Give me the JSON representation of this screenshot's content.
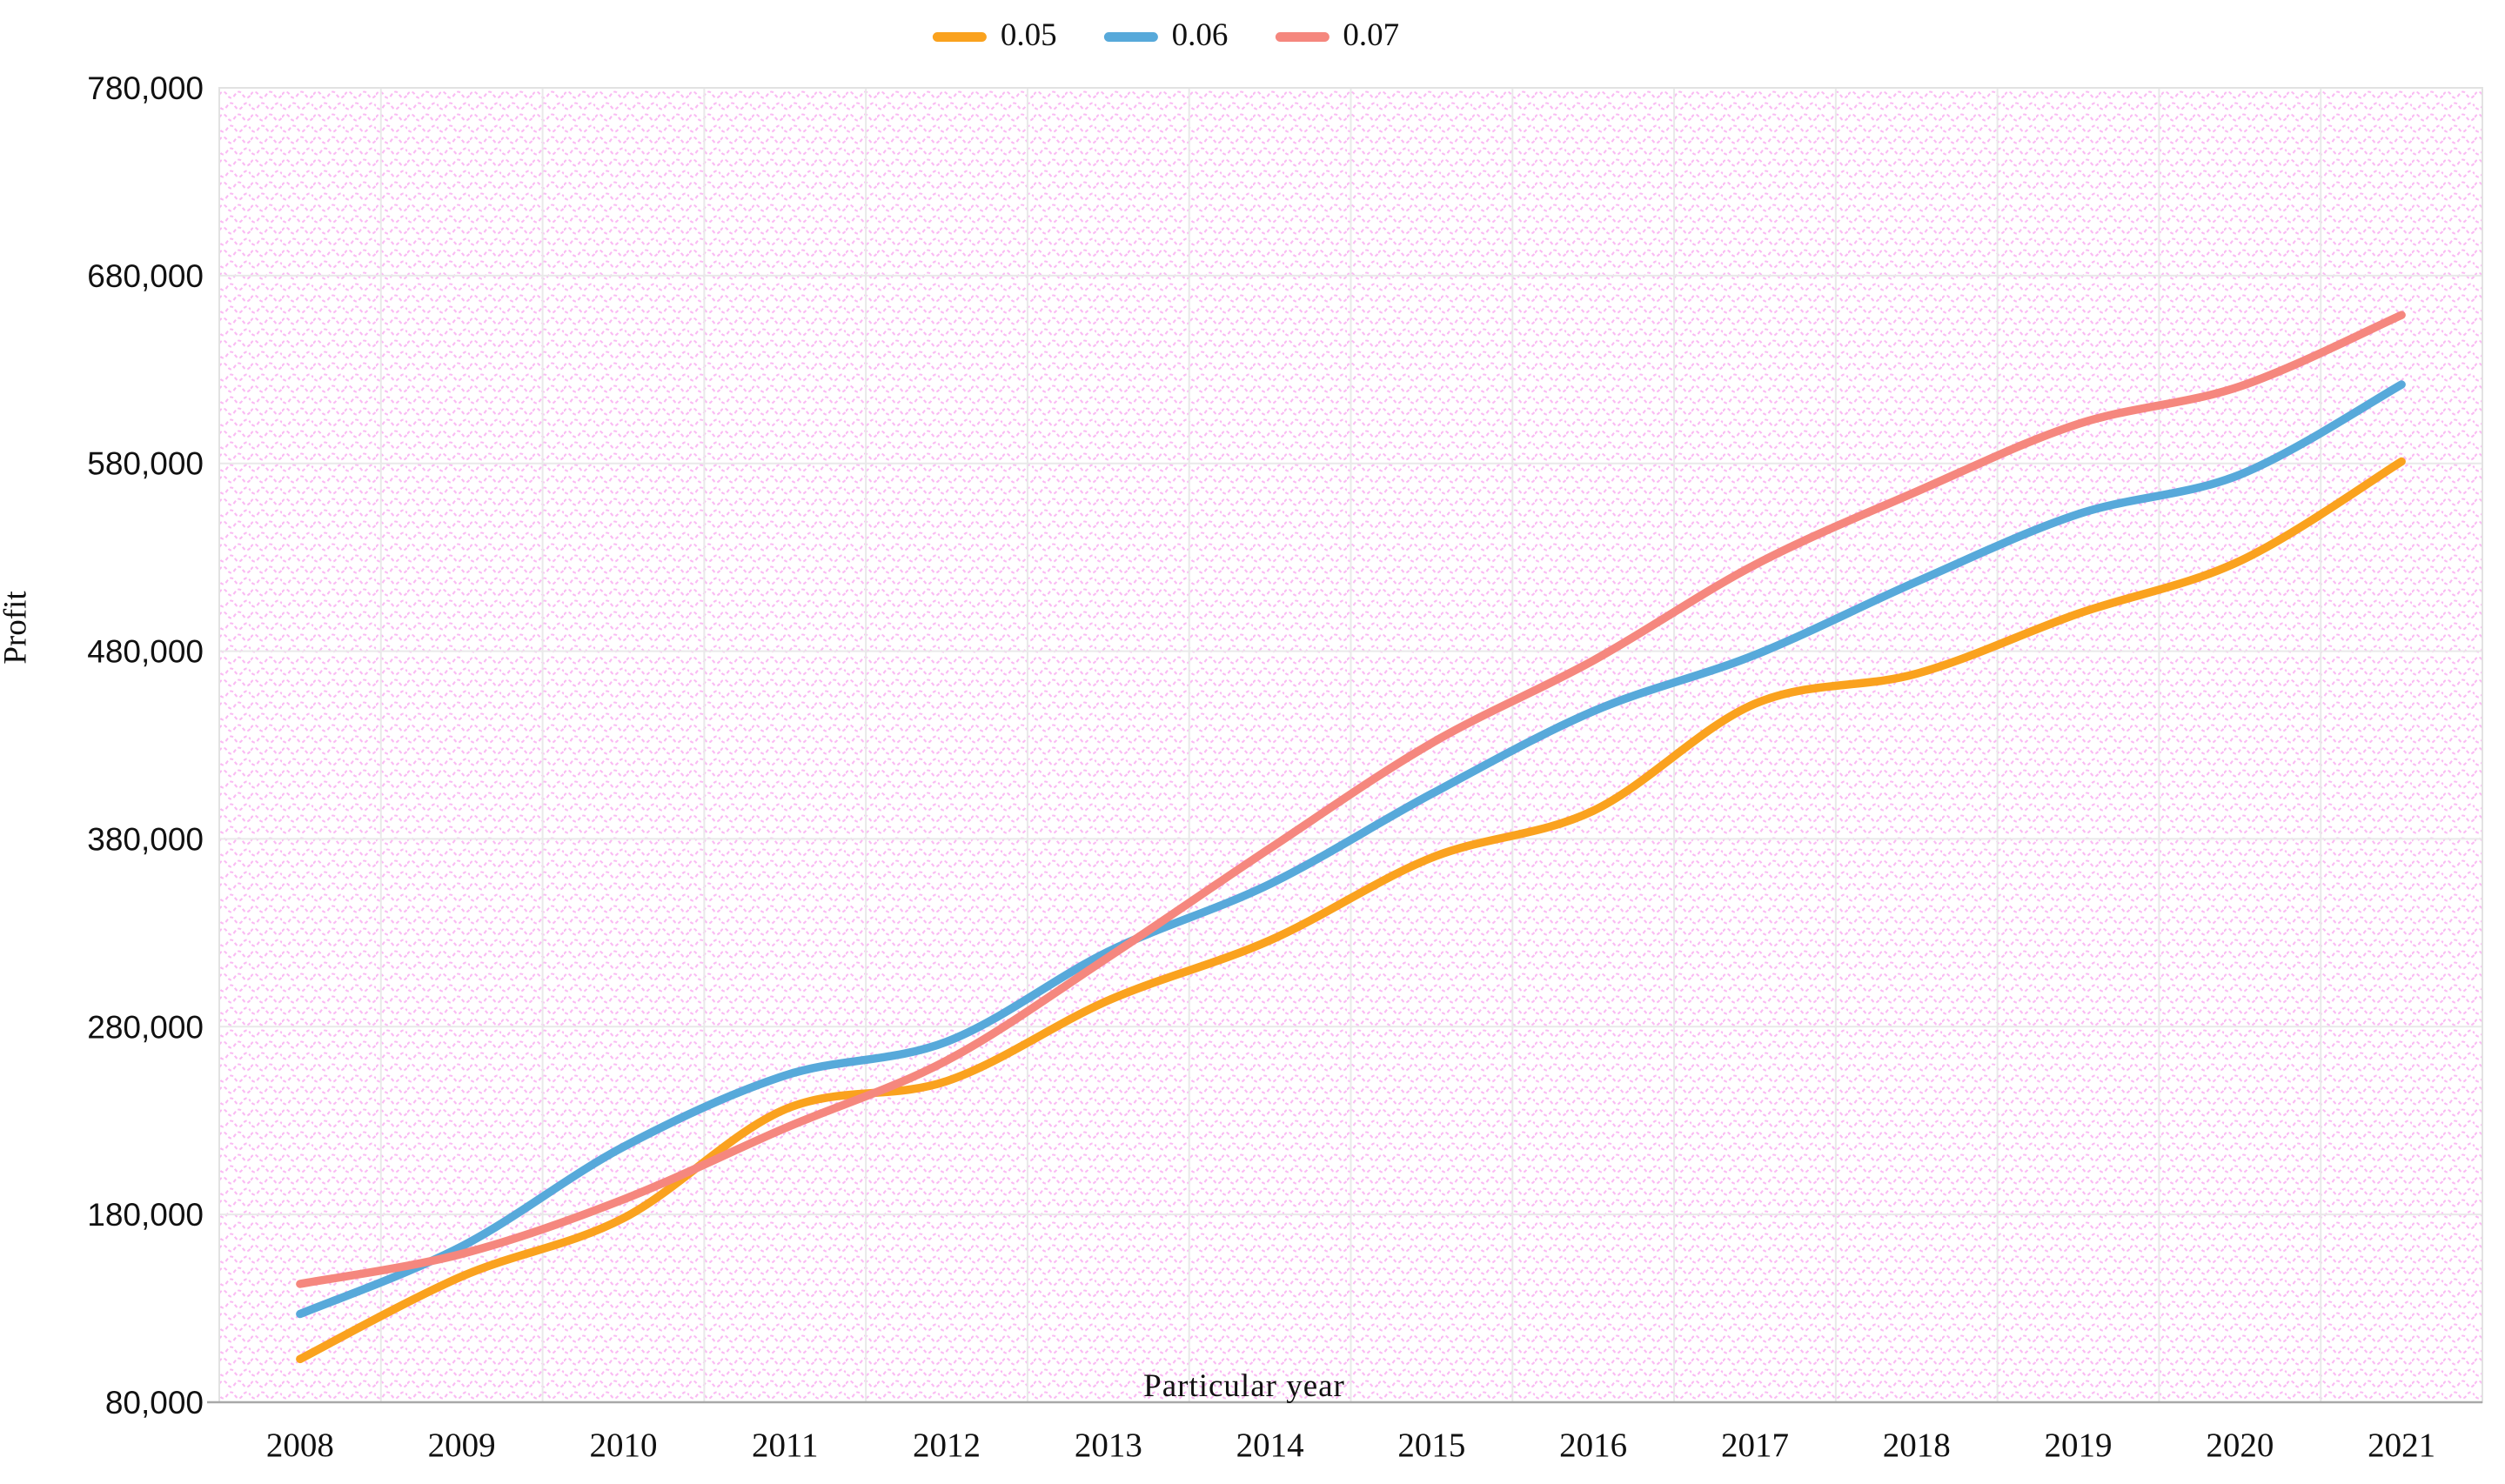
{
  "legend": {
    "items": [
      {
        "label": "0.05",
        "color": "#FAA21E"
      },
      {
        "label": "0.06",
        "color": "#57A9DA"
      },
      {
        "label": "0.07",
        "color": "#F5877E"
      }
    ]
  },
  "axes": {
    "y_title": "Profit",
    "x_title": "Particular year",
    "y_ticks": [
      {
        "value": 80000,
        "label": "80,000"
      },
      {
        "value": 180000,
        "label": "180,000"
      },
      {
        "value": 280000,
        "label": "280,000"
      },
      {
        "value": 380000,
        "label": "380,000"
      },
      {
        "value": 480000,
        "label": "480,000"
      },
      {
        "value": 580000,
        "label": "580,000"
      },
      {
        "value": 680000,
        "label": "680,000"
      },
      {
        "value": 780000,
        "label": "780,000"
      }
    ]
  },
  "chart_data": {
    "type": "line",
    "title": "",
    "xlabel": "Particular year",
    "ylabel": "Profit",
    "categories": [
      "2008",
      "2009",
      "2010",
      "2011",
      "2012",
      "2013",
      "2014",
      "2015",
      "2016",
      "2017",
      "2018",
      "2019",
      "2020",
      "2021"
    ],
    "series": [
      {
        "name": "0.05",
        "color": "#FAA21E",
        "values": [
          103000,
          147000,
          178000,
          236000,
          251000,
          294000,
          326000,
          370000,
          395000,
          452000,
          468000,
          500000,
          528000,
          581000
        ]
      },
      {
        "name": "0.06",
        "color": "#57A9DA",
        "values": [
          127000,
          163000,
          216000,
          254000,
          272000,
          320000,
          356000,
          404000,
          448000,
          478000,
          517000,
          553000,
          574000,
          622000
        ]
      },
      {
        "name": "0.07",
        "color": "#F5877E",
        "values": [
          143000,
          159000,
          188000,
          226000,
          262000,
          317000,
          375000,
          431000,
          475000,
          526000,
          565000,
          601000,
          621000,
          659000
        ]
      }
    ],
    "ylim": [
      80000,
      780000
    ],
    "y_step": 100000,
    "grid": true,
    "smooth": true,
    "legend_position": "top-center",
    "plot_background": "white with light pink wavy dotted pattern"
  },
  "style": {
    "grid_color": "#E9E9E9",
    "border_color": "#E2E2E2",
    "axis_line_color": "#A8A8A8",
    "pattern_color": "#F9A9F0",
    "text_color": "#111111"
  }
}
